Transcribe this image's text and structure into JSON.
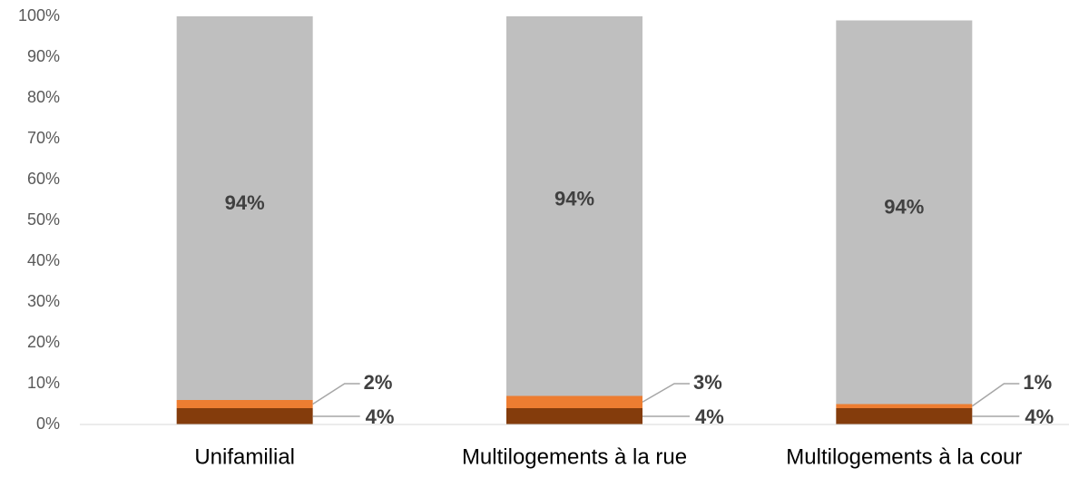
{
  "chart_data": {
    "type": "stacked_bar",
    "categories": [
      "Unifamilial",
      "Multilogements à la rue",
      "Multilogements à la cour"
    ],
    "series": [
      {
        "color": "#843C0C",
        "values": [
          4,
          4,
          4
        ],
        "value_labels": [
          "4%",
          "4%",
          "4%"
        ]
      },
      {
        "color": "#ED7D31",
        "values": [
          2,
          3,
          1
        ],
        "value_labels": [
          "2%",
          "3%",
          "1%"
        ]
      },
      {
        "color": "#BFBFBF",
        "values": [
          94,
          94,
          94
        ],
        "value_labels": [
          "94%",
          "94%",
          "94%"
        ]
      }
    ],
    "ylim": [
      0,
      100
    ],
    "yticks": [
      {
        "value": 0,
        "label": "0%"
      },
      {
        "value": 10,
        "label": "10%"
      },
      {
        "value": 20,
        "label": "20%"
      },
      {
        "value": 30,
        "label": "30%"
      },
      {
        "value": 40,
        "label": "40%"
      },
      {
        "value": 50,
        "label": "50%"
      },
      {
        "value": 60,
        "label": "60%"
      },
      {
        "value": 70,
        "label": "70%"
      },
      {
        "value": 80,
        "label": "80%"
      },
      {
        "value": 90,
        "label": "90%"
      },
      {
        "value": 100,
        "label": "100%"
      }
    ],
    "grid": false
  }
}
